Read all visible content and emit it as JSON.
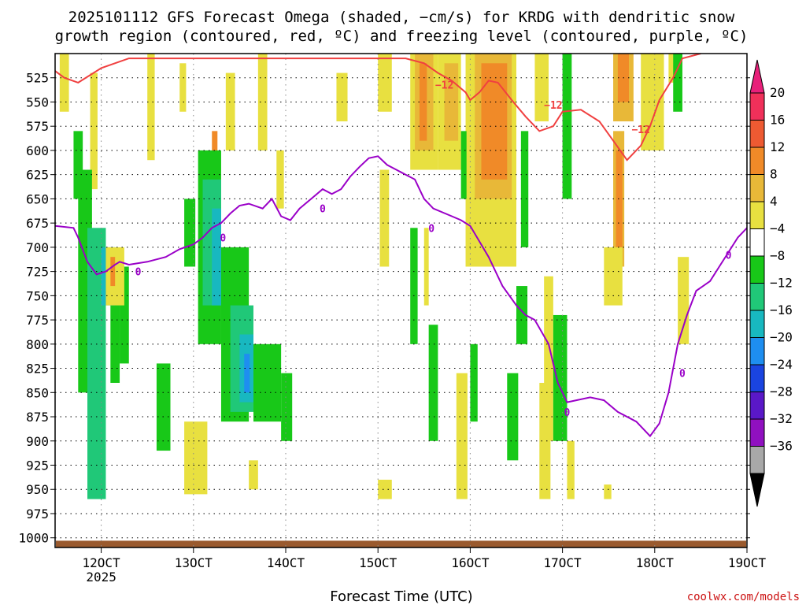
{
  "chart_data": {
    "type": "contour",
    "title_line1": "2025101112 GFS Forecast Omega (shaded, −cm/s) for KRDG with dendritic snow",
    "title_line2": "growth region (contoured, red, ºC) and freezing level (contoured, purple, ºC)",
    "xlabel": "Forecast Time (UTC)",
    "credit": "coolwx.com/models",
    "x_range_days": [
      11.5,
      19.0
    ],
    "y_range_hpa": [
      500,
      1010
    ],
    "x_ticks": [
      {
        "day": 12,
        "label": "12OCT",
        "sub": "2025"
      },
      {
        "day": 13,
        "label": "13OCT",
        "sub": ""
      },
      {
        "day": 14,
        "label": "14OCT",
        "sub": ""
      },
      {
        "day": 15,
        "label": "15OCT",
        "sub": ""
      },
      {
        "day": 16,
        "label": "16OCT",
        "sub": ""
      },
      {
        "day": 17,
        "label": "17OCT",
        "sub": ""
      },
      {
        "day": 18,
        "label": "18OCT",
        "sub": ""
      },
      {
        "day": 19,
        "label": "19OCT",
        "sub": ""
      }
    ],
    "y_ticks": [
      525,
      550,
      575,
      600,
      625,
      650,
      675,
      700,
      725,
      750,
      775,
      800,
      825,
      850,
      875,
      900,
      925,
      950,
      975,
      1000
    ],
    "colorbar": {
      "labels": [
        "20",
        "16",
        "12",
        "8",
        "4",
        "−4",
        "−8",
        "−12",
        "−16",
        "−20",
        "−24",
        "−28",
        "−32",
        "−36"
      ],
      "colors": [
        "#f0305a",
        "#ee5a32",
        "#f08a28",
        "#e8b838",
        "#e8e040",
        "#ffffff",
        "#18c818",
        "#20c878",
        "#18b8c0",
        "#1e8ef0",
        "#1a44e0",
        "#5a18c8",
        "#9010c0",
        "#a8a8a8"
      ],
      "top_color": "#e8207a",
      "bottom_color": "#000000"
    },
    "freezing_level": {
      "name": "0ºC level",
      "color": "#9a00c8",
      "label": "0",
      "points": [
        [
          11.5,
          678
        ],
        [
          11.7,
          680
        ],
        [
          11.75,
          690
        ],
        [
          11.85,
          715
        ],
        [
          11.95,
          728
        ],
        [
          12.05,
          725
        ],
        [
          12.15,
          718
        ],
        [
          12.2,
          715
        ],
        [
          12.3,
          718
        ],
        [
          12.5,
          715
        ],
        [
          12.7,
          710
        ],
        [
          12.85,
          702
        ],
        [
          13.0,
          697
        ],
        [
          13.1,
          690
        ],
        [
          13.2,
          680
        ],
        [
          13.3,
          675
        ],
        [
          13.4,
          665
        ],
        [
          13.5,
          657
        ],
        [
          13.6,
          655
        ],
        [
          13.75,
          660
        ],
        [
          13.85,
          650
        ],
        [
          13.95,
          668
        ],
        [
          14.05,
          672
        ],
        [
          14.15,
          660
        ],
        [
          14.3,
          648
        ],
        [
          14.4,
          640
        ],
        [
          14.5,
          645
        ],
        [
          14.6,
          640
        ],
        [
          14.7,
          627
        ],
        [
          14.8,
          617
        ],
        [
          14.9,
          608
        ],
        [
          15.0,
          606
        ],
        [
          15.1,
          615
        ],
        [
          15.2,
          620
        ],
        [
          15.3,
          625
        ],
        [
          15.4,
          630
        ],
        [
          15.5,
          650
        ],
        [
          15.6,
          660
        ],
        [
          15.8,
          668
        ],
        [
          15.9,
          672
        ],
        [
          16.0,
          678
        ],
        [
          16.2,
          710
        ],
        [
          16.35,
          740
        ],
        [
          16.5,
          760
        ],
        [
          16.6,
          770
        ],
        [
          16.7,
          775
        ],
        [
          16.85,
          800
        ],
        [
          16.95,
          840
        ],
        [
          17.05,
          860
        ],
        [
          17.15,
          858
        ],
        [
          17.3,
          855
        ],
        [
          17.45,
          858
        ],
        [
          17.6,
          870
        ],
        [
          17.8,
          880
        ],
        [
          17.95,
          895
        ],
        [
          18.05,
          882
        ],
        [
          18.15,
          850
        ],
        [
          18.25,
          800
        ],
        [
          18.35,
          770
        ],
        [
          18.45,
          745
        ],
        [
          18.6,
          735
        ],
        [
          18.7,
          720
        ],
        [
          18.8,
          705
        ],
        [
          18.9,
          690
        ],
        [
          19.0,
          680
        ]
      ]
    },
    "dgz_top_line": {
      "name": "−12ºC",
      "color": "#f04040",
      "label": "−12",
      "points": [
        [
          11.5,
          518
        ],
        [
          11.6,
          525
        ],
        [
          11.75,
          530
        ],
        [
          12.0,
          515
        ],
        [
          12.3,
          505
        ],
        [
          14.5,
          505
        ],
        [
          15.3,
          505
        ],
        [
          15.5,
          510
        ],
        [
          15.65,
          520
        ],
        [
          15.8,
          528
        ],
        [
          15.95,
          540
        ],
        [
          16.0,
          548
        ],
        [
          16.1,
          540
        ],
        [
          16.2,
          528
        ],
        [
          16.3,
          530
        ],
        [
          16.45,
          548
        ],
        [
          16.6,
          565
        ],
        [
          16.75,
          580
        ],
        [
          16.9,
          575
        ],
        [
          17.0,
          560
        ],
        [
          17.2,
          558
        ],
        [
          17.4,
          570
        ],
        [
          17.55,
          590
        ],
        [
          17.7,
          610
        ],
        [
          17.85,
          595
        ],
        [
          17.95,
          575
        ],
        [
          18.05,
          548
        ],
        [
          18.2,
          525
        ],
        [
          18.3,
          505
        ],
        [
          18.5,
          500
        ]
      ]
    },
    "omega_cells": [
      {
        "c": "#e8e040",
        "x": 11.55,
        "w": 0.1,
        "top": 500,
        "bot": 560
      },
      {
        "c": "#e8e040",
        "x": 11.88,
        "w": 0.08,
        "top": 520,
        "bot": 640
      },
      {
        "c": "#e8e040",
        "x": 12.5,
        "w": 0.08,
        "top": 500,
        "bot": 610
      },
      {
        "c": "#e8e040",
        "x": 12.85,
        "w": 0.07,
        "top": 510,
        "bot": 560
      },
      {
        "c": "#e8e040",
        "x": 13.35,
        "w": 0.1,
        "top": 520,
        "bot": 600
      },
      {
        "c": "#f08a28",
        "x": 13.2,
        "w": 0.06,
        "top": 580,
        "bot": 650
      },
      {
        "c": "#e8e040",
        "x": 13.7,
        "w": 0.1,
        "top": 500,
        "bot": 600
      },
      {
        "c": "#e8e040",
        "x": 13.9,
        "w": 0.08,
        "top": 600,
        "bot": 660
      },
      {
        "c": "#e8e040",
        "x": 14.55,
        "w": 0.12,
        "top": 520,
        "bot": 570
      },
      {
        "c": "#e8e040",
        "x": 15.0,
        "w": 0.15,
        "top": 500,
        "bot": 560
      },
      {
        "c": "#e8e040",
        "x": 15.35,
        "w": 0.3,
        "top": 500,
        "bot": 620
      },
      {
        "c": "#e8b838",
        "x": 15.4,
        "w": 0.2,
        "top": 500,
        "bot": 600
      },
      {
        "c": "#f08a28",
        "x": 15.45,
        "w": 0.08,
        "top": 510,
        "bot": 590
      },
      {
        "c": "#e8e040",
        "x": 15.65,
        "w": 0.25,
        "top": 500,
        "bot": 620
      },
      {
        "c": "#e8b838",
        "x": 15.72,
        "w": 0.15,
        "top": 510,
        "bot": 590
      },
      {
        "c": "#e8e040",
        "x": 15.95,
        "w": 0.55,
        "top": 500,
        "bot": 720
      },
      {
        "c": "#e8b838",
        "x": 16.05,
        "w": 0.4,
        "top": 500,
        "bot": 650
      },
      {
        "c": "#f08a28",
        "x": 16.12,
        "w": 0.28,
        "top": 510,
        "bot": 630
      },
      {
        "c": "#e8e040",
        "x": 16.7,
        "w": 0.15,
        "top": 500,
        "bot": 570
      },
      {
        "c": "#e8e040",
        "x": 17.85,
        "w": 0.25,
        "top": 500,
        "bot": 600
      },
      {
        "c": "#e8b838",
        "x": 17.55,
        "w": 0.22,
        "top": 500,
        "bot": 570
      },
      {
        "c": "#f08a28",
        "x": 17.6,
        "w": 0.12,
        "top": 500,
        "bot": 550
      },
      {
        "c": "#e8b838",
        "x": 17.55,
        "w": 0.12,
        "top": 580,
        "bot": 720
      },
      {
        "c": "#f08a28",
        "x": 17.58,
        "w": 0.07,
        "top": 600,
        "bot": 700
      },
      {
        "c": "#e8e040",
        "x": 17.45,
        "w": 0.2,
        "top": 700,
        "bot": 760
      },
      {
        "c": "#e8e040",
        "x": 18.15,
        "w": 0.15,
        "top": 500,
        "bot": 530
      },
      {
        "c": "#18c818",
        "x": 18.2,
        "w": 0.1,
        "top": 500,
        "bot": 560
      },
      {
        "c": "#e8e040",
        "x": 18.25,
        "w": 0.12,
        "top": 710,
        "bot": 800
      },
      {
        "c": "#18c818",
        "x": 17.0,
        "w": 0.1,
        "top": 500,
        "bot": 650
      },
      {
        "c": "#18c818",
        "x": 16.55,
        "w": 0.08,
        "top": 580,
        "bot": 700
      },
      {
        "c": "#18c818",
        "x": 15.9,
        "w": 0.06,
        "top": 580,
        "bot": 650
      },
      {
        "c": "#e8e040",
        "x": 16.1,
        "w": 0.2,
        "top": 650,
        "bot": 720
      },
      {
        "c": "#e8e040",
        "x": 15.02,
        "w": 0.1,
        "top": 620,
        "bot": 720
      },
      {
        "c": "#e8e040",
        "x": 15.5,
        "w": 0.05,
        "top": 680,
        "bot": 760
      },
      {
        "c": "#18c818",
        "x": 15.35,
        "w": 0.08,
        "top": 680,
        "bot": 800
      },
      {
        "c": "#18c818",
        "x": 15.55,
        "w": 0.1,
        "top": 780,
        "bot": 900
      },
      {
        "c": "#18c818",
        "x": 16.0,
        "w": 0.08,
        "top": 800,
        "bot": 880
      },
      {
        "c": "#18c818",
        "x": 16.4,
        "w": 0.12,
        "top": 830,
        "bot": 920
      },
      {
        "c": "#e8e040",
        "x": 15.85,
        "w": 0.12,
        "top": 830,
        "bot": 960
      },
      {
        "c": "#e8e040",
        "x": 16.8,
        "w": 0.1,
        "top": 730,
        "bot": 900
      },
      {
        "c": "#18c818",
        "x": 16.5,
        "w": 0.12,
        "top": 740,
        "bot": 800
      },
      {
        "c": "#18c818",
        "x": 16.9,
        "w": 0.15,
        "top": 770,
        "bot": 900
      },
      {
        "c": "#e8e040",
        "x": 16.75,
        "w": 0.12,
        "top": 840,
        "bot": 960
      },
      {
        "c": "#e8e040",
        "x": 17.05,
        "w": 0.08,
        "top": 900,
        "bot": 960
      },
      {
        "c": "#e8e040",
        "x": 17.45,
        "w": 0.08,
        "top": 945,
        "bot": 960
      },
      {
        "c": "#e8e040",
        "x": 15.0,
        "w": 0.15,
        "top": 940,
        "bot": 960
      },
      {
        "c": "#18c818",
        "x": 11.7,
        "w": 0.1,
        "top": 580,
        "bot": 650
      },
      {
        "c": "#18c818",
        "x": 11.75,
        "w": 0.15,
        "top": 620,
        "bot": 850
      },
      {
        "c": "#20c878",
        "x": 11.85,
        "w": 0.2,
        "top": 680,
        "bot": 960
      },
      {
        "c": "#18b8c0",
        "x": 12.0,
        "w": 0.15,
        "top": 700,
        "bot": 760
      },
      {
        "c": "#18c818",
        "x": 12.1,
        "w": 0.1,
        "top": 740,
        "bot": 840
      },
      {
        "c": "#1e8ef0",
        "x": 12.1,
        "w": 0.05,
        "top": 700,
        "bot": 760
      },
      {
        "c": "#18c818",
        "x": 12.2,
        "w": 0.1,
        "top": 720,
        "bot": 820
      },
      {
        "c": "#18c818",
        "x": 12.6,
        "w": 0.15,
        "top": 820,
        "bot": 910
      },
      {
        "c": "#18c818",
        "x": 12.9,
        "w": 0.12,
        "top": 650,
        "bot": 720
      },
      {
        "c": "#18c818",
        "x": 13.05,
        "w": 0.25,
        "top": 600,
        "bot": 800
      },
      {
        "c": "#20c878",
        "x": 13.1,
        "w": 0.2,
        "top": 630,
        "bot": 760
      },
      {
        "c": "#18b8c0",
        "x": 13.2,
        "w": 0.1,
        "top": 660,
        "bot": 760
      },
      {
        "c": "#18c818",
        "x": 13.3,
        "w": 0.3,
        "top": 700,
        "bot": 880
      },
      {
        "c": "#20c878",
        "x": 13.4,
        "w": 0.25,
        "top": 760,
        "bot": 870
      },
      {
        "c": "#18b8c0",
        "x": 13.5,
        "w": 0.15,
        "top": 790,
        "bot": 860
      },
      {
        "c": "#1e8ef0",
        "x": 13.55,
        "w": 0.06,
        "top": 810,
        "bot": 850
      },
      {
        "c": "#18c818",
        "x": 13.65,
        "w": 0.3,
        "top": 800,
        "bot": 880
      },
      {
        "c": "#18c818",
        "x": 13.95,
        "w": 0.12,
        "top": 830,
        "bot": 900
      },
      {
        "c": "#e8e040",
        "x": 12.9,
        "w": 0.25,
        "top": 880,
        "bot": 955
      },
      {
        "c": "#e8e040",
        "x": 13.6,
        "w": 0.1,
        "top": 920,
        "bot": 950
      },
      {
        "c": "#e8e040",
        "x": 12.05,
        "w": 0.2,
        "top": 700,
        "bot": 760
      },
      {
        "c": "#f08a28",
        "x": 12.1,
        "w": 0.05,
        "top": 710,
        "bot": 740
      }
    ]
  }
}
